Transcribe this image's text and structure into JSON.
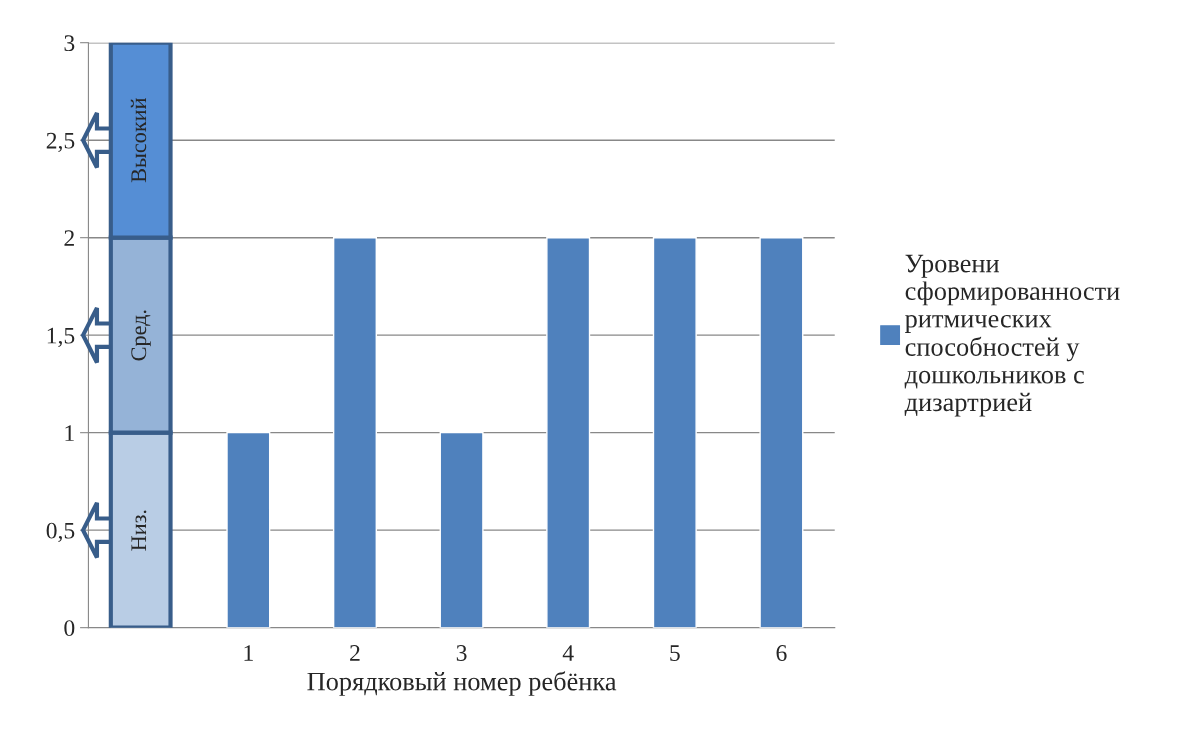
{
  "chart_data": {
    "type": "bar",
    "xlabel": "Порядковый номер ребёнка",
    "categories": [
      null,
      "1",
      "2",
      "3",
      "4",
      "5",
      "6"
    ],
    "series": [
      {
        "name": "Уровени\nсформированности\nритмических\nспособностей у\nдошкольников с\nдизартрией",
        "color": "#4f81bd",
        "values": [
          null,
          1,
          2,
          1,
          2,
          2,
          2
        ]
      }
    ],
    "ylim": [
      0,
      3
    ],
    "yticks": [
      0,
      {
        "value": 0.5,
        "label": "0,5"
      },
      1,
      {
        "value": 1.5,
        "label": "1,5"
      },
      2,
      {
        "value": 2.5,
        "label": "2,5"
      },
      3
    ],
    "grid": "y",
    "legend": "right",
    "bands": [
      {
        "axis": "y",
        "from": 0,
        "to": 1,
        "label": "Низ.",
        "color": "#b9cde5"
      },
      {
        "axis": "y",
        "from": 1,
        "to": 2,
        "label": "Сред.",
        "color": "#95b3d7"
      },
      {
        "axis": "y",
        "from": 2,
        "to": 3,
        "label": "Высокий",
        "color": "#558ed5"
      }
    ]
  }
}
